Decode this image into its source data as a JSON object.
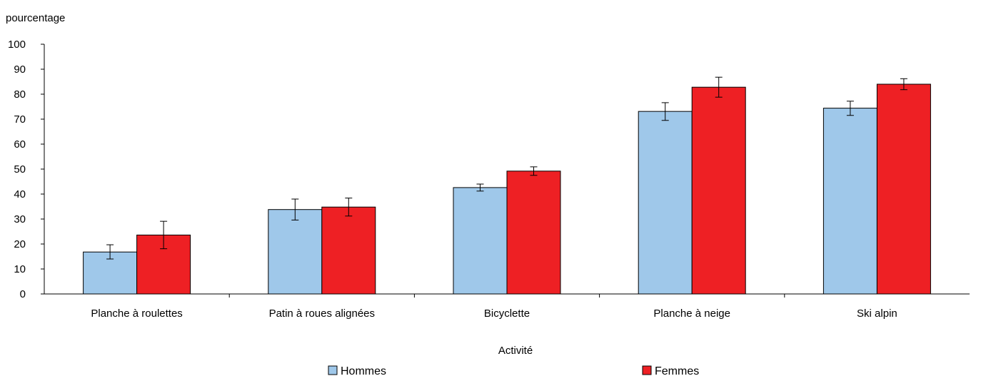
{
  "chart_data": {
    "type": "bar",
    "title": "",
    "ylabel": "pourcentage",
    "xlabel": "Activité",
    "ylim": [
      0,
      100
    ],
    "yticks": [
      0,
      10,
      20,
      30,
      40,
      50,
      60,
      70,
      80,
      90,
      100
    ],
    "grid": false,
    "legend_position": "bottom",
    "error_bars": true,
    "categories": [
      "Planche à roulettes",
      "Patin à roues alignées",
      "Bicyclette",
      "Planche à neige",
      "Ski alpin"
    ],
    "series": [
      {
        "name": "Hommes",
        "color": "#9fc8ea",
        "values": [
          16.8,
          33.8,
          42.6,
          73.1,
          74.4
        ],
        "error_low": [
          14.0,
          29.6,
          41.2,
          69.5,
          71.5
        ],
        "error_high": [
          19.7,
          38.0,
          44.0,
          76.6,
          77.2
        ]
      },
      {
        "name": "Femmes",
        "color": "#ee2024",
        "values": [
          23.6,
          34.8,
          49.2,
          82.8,
          84.0
        ],
        "error_low": [
          18.1,
          31.2,
          47.5,
          78.8,
          81.8
        ],
        "error_high": [
          29.1,
          38.4,
          50.9,
          86.8,
          86.2
        ]
      }
    ]
  }
}
